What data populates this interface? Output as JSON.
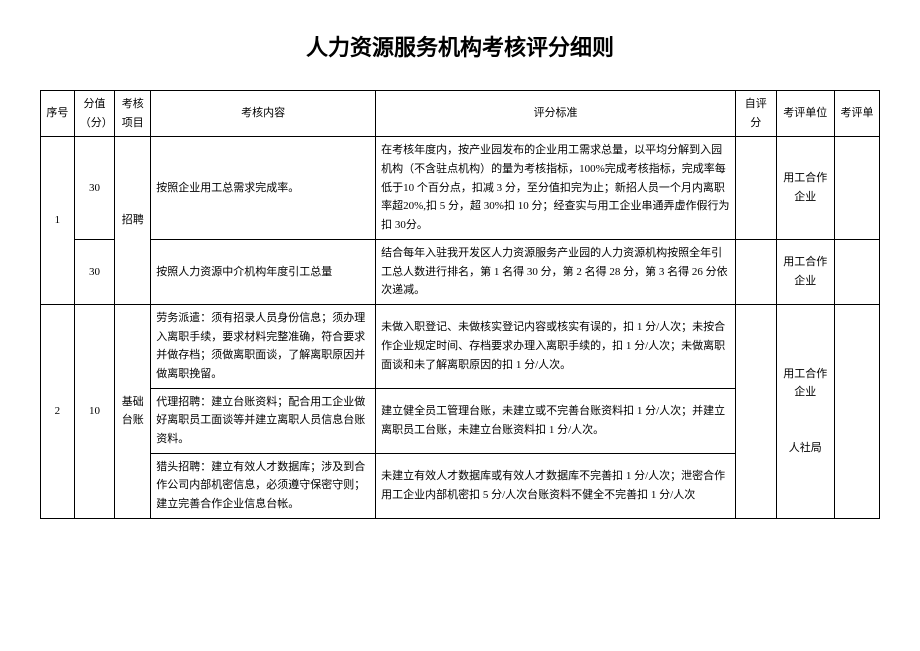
{
  "title": "人力资源服务机构考核评分细则",
  "headers": {
    "seq": "序号",
    "score": "分值（分）",
    "project": "考核项目",
    "content": "考核内容",
    "standard": "评分标准",
    "self": "自评分",
    "unit": "考评单位",
    "eval": "考评单"
  },
  "rows": [
    {
      "seq": "1",
      "project": "招聘",
      "sub": [
        {
          "score": "30",
          "content": "按照企业用工总需求完成率。",
          "standard": "在考核年度内，按产业园发布的企业用工需求总量，以平均分解到入园机构（不含驻点机构）的量为考核指标，100%完成考核指标，完成率每低于10 个百分点，扣减 3 分，至分值扣完为止；新招人员一个月内离职率超20%,扣 5 分，超 30%扣 10 分；经查实与用工企业串通弄虚作假行为扣 30分。",
          "unit": "用工合作企业"
        },
        {
          "score": "30",
          "content": "按照人力资源中介机构年度引工总量",
          "standard": "结合每年入驻我开发区人力资源服务产业园的人力资源机构按照全年引工总人数进行排名，第 1 名得 30 分，第 2 名得 28 分，第 3 名得 26 分依次递减。",
          "unit": "用工合作企业"
        }
      ]
    },
    {
      "seq": "2",
      "score": "10",
      "project": "基础台账",
      "unit_combined": "用工合作企业\n\n\n人社局",
      "sub": [
        {
          "content": "劳务派遣：须有招录人员身份信息；须办理入离职手续，要求材料完整准确，符合要求并做存档；须做离职面谈，了解离职原因并做离职挽留。",
          "standard": "未做入职登记、未做核实登记内容或核实有误的，扣 1 分/人次；未按合作企业规定时间、存档要求办理入离职手续的，扣 1 分/人次；未做离职面谈和未了解离职原因的扣 1 分/人次。"
        },
        {
          "content": "代理招聘：建立台账资料；配合用工企业做好离职员工面谈等并建立离职人员信息台账资料。",
          "standard": "建立健全员工管理台账，未建立或不完善台账资料扣 1 分/人次；并建立离职员工台账，未建立台账资料扣 1 分/人次。"
        },
        {
          "content": "猎头招聘：建立有效人才数据库；涉及到合作公司内部机密信息，必须遵守保密守则；建立完善合作企业信息台帐。",
          "standard": "未建立有效人才数据库或有效人才数据库不完善扣 1 分/人次；泄密合作用工企业内部机密扣 5 分/人次台账资料不健全不完善扣 1 分/人次"
        }
      ]
    }
  ]
}
